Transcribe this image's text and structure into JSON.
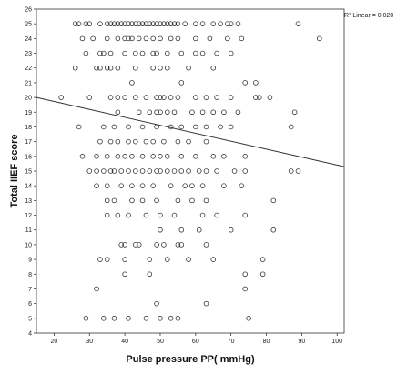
{
  "chart_data": {
    "type": "scatter",
    "xlabel": "Pulse pressure PP( mmHg)",
    "ylabel": "Total IIEF score",
    "xlim": [
      15,
      102
    ],
    "ylim": [
      4,
      26
    ],
    "xticks": [
      20,
      30,
      40,
      50,
      60,
      70,
      80,
      90,
      100
    ],
    "yticks": [
      4,
      5,
      6,
      7,
      8,
      9,
      10,
      11,
      12,
      13,
      14,
      15,
      16,
      17,
      18,
      19,
      20,
      21,
      22,
      23,
      24,
      25,
      26
    ],
    "annotation": "R² Linear = 0.020",
    "regression_line": {
      "x": [
        15,
        102
      ],
      "y": [
        20.0,
        15.3
      ]
    },
    "points": [
      [
        26,
        25
      ],
      [
        27,
        25
      ],
      [
        29,
        25
      ],
      [
        30,
        25
      ],
      [
        33,
        25
      ],
      [
        35,
        25
      ],
      [
        36,
        25
      ],
      [
        37,
        25
      ],
      [
        38,
        25
      ],
      [
        39,
        25
      ],
      [
        40,
        25
      ],
      [
        41,
        25
      ],
      [
        42,
        25
      ],
      [
        43,
        25
      ],
      [
        44,
        25
      ],
      [
        45,
        25
      ],
      [
        46,
        25
      ],
      [
        47,
        25
      ],
      [
        48,
        25
      ],
      [
        49,
        25
      ],
      [
        50,
        25
      ],
      [
        51,
        25
      ],
      [
        52,
        25
      ],
      [
        53,
        25
      ],
      [
        54,
        25
      ],
      [
        55,
        25
      ],
      [
        57,
        25
      ],
      [
        60,
        25
      ],
      [
        62,
        25
      ],
      [
        65,
        25
      ],
      [
        67,
        25
      ],
      [
        69,
        25
      ],
      [
        70,
        25
      ],
      [
        72,
        25
      ],
      [
        89,
        25
      ],
      [
        28,
        24
      ],
      [
        31,
        24
      ],
      [
        35,
        24
      ],
      [
        38,
        24
      ],
      [
        40,
        24
      ],
      [
        41,
        24
      ],
      [
        42,
        24
      ],
      [
        44,
        24
      ],
      [
        46,
        24
      ],
      [
        48,
        24
      ],
      [
        50,
        24
      ],
      [
        53,
        24
      ],
      [
        55,
        24
      ],
      [
        60,
        24
      ],
      [
        64,
        24
      ],
      [
        69,
        24
      ],
      [
        73,
        24
      ],
      [
        95,
        24
      ],
      [
        29,
        23
      ],
      [
        33,
        23
      ],
      [
        34,
        23
      ],
      [
        36,
        23
      ],
      [
        40,
        23
      ],
      [
        43,
        23
      ],
      [
        45,
        23
      ],
      [
        48,
        23
      ],
      [
        49,
        23
      ],
      [
        52,
        23
      ],
      [
        56,
        23
      ],
      [
        60,
        23
      ],
      [
        62,
        23
      ],
      [
        66,
        23
      ],
      [
        70,
        23
      ],
      [
        32,
        22
      ],
      [
        33,
        22
      ],
      [
        35,
        22
      ],
      [
        36,
        22
      ],
      [
        38,
        22
      ],
      [
        43,
        22
      ],
      [
        48,
        22
      ],
      [
        50,
        22
      ],
      [
        52,
        22
      ],
      [
        58,
        22
      ],
      [
        65,
        22
      ],
      [
        26,
        22
      ],
      [
        42,
        21
      ],
      [
        56,
        21
      ],
      [
        74,
        21
      ],
      [
        77,
        21
      ],
      [
        30,
        20
      ],
      [
        36,
        20
      ],
      [
        38,
        20
      ],
      [
        40,
        20
      ],
      [
        43,
        20
      ],
      [
        46,
        20
      ],
      [
        49,
        20
      ],
      [
        50,
        20
      ],
      [
        51,
        20
      ],
      [
        53,
        20
      ],
      [
        55,
        20
      ],
      [
        60,
        20
      ],
      [
        63,
        20
      ],
      [
        66,
        20
      ],
      [
        70,
        20
      ],
      [
        77,
        20
      ],
      [
        78,
        20
      ],
      [
        81,
        20
      ],
      [
        22,
        20
      ],
      [
        38,
        19
      ],
      [
        44,
        19
      ],
      [
        47,
        19
      ],
      [
        49,
        19
      ],
      [
        50,
        19
      ],
      [
        52,
        19
      ],
      [
        54,
        19
      ],
      [
        59,
        19
      ],
      [
        62,
        19
      ],
      [
        65,
        19
      ],
      [
        68,
        19
      ],
      [
        72,
        19
      ],
      [
        88,
        19
      ],
      [
        27,
        18
      ],
      [
        34,
        18
      ],
      [
        37,
        18
      ],
      [
        41,
        18
      ],
      [
        45,
        18
      ],
      [
        49,
        18
      ],
      [
        53,
        18
      ],
      [
        56,
        18
      ],
      [
        60,
        18
      ],
      [
        63,
        18
      ],
      [
        67,
        18
      ],
      [
        70,
        18
      ],
      [
        87,
        18
      ],
      [
        33,
        17
      ],
      [
        36,
        17
      ],
      [
        38,
        17
      ],
      [
        41,
        17
      ],
      [
        43,
        17
      ],
      [
        46,
        17
      ],
      [
        48,
        17
      ],
      [
        51,
        17
      ],
      [
        55,
        17
      ],
      [
        58,
        17
      ],
      [
        63,
        17
      ],
      [
        28,
        16
      ],
      [
        32,
        16
      ],
      [
        35,
        16
      ],
      [
        38,
        16
      ],
      [
        40,
        16
      ],
      [
        42,
        16
      ],
      [
        45,
        16
      ],
      [
        48,
        16
      ],
      [
        50,
        16
      ],
      [
        52,
        16
      ],
      [
        56,
        16
      ],
      [
        60,
        16
      ],
      [
        65,
        16
      ],
      [
        68,
        16
      ],
      [
        74,
        16
      ],
      [
        30,
        15
      ],
      [
        32,
        15
      ],
      [
        34,
        15
      ],
      [
        36,
        15
      ],
      [
        37,
        15
      ],
      [
        39,
        15
      ],
      [
        41,
        15
      ],
      [
        43,
        15
      ],
      [
        45,
        15
      ],
      [
        47,
        15
      ],
      [
        49,
        15
      ],
      [
        50,
        15
      ],
      [
        52,
        15
      ],
      [
        54,
        15
      ],
      [
        56,
        15
      ],
      [
        58,
        15
      ],
      [
        61,
        15
      ],
      [
        63,
        15
      ],
      [
        66,
        15
      ],
      [
        71,
        15
      ],
      [
        74,
        15
      ],
      [
        87,
        15
      ],
      [
        89,
        15
      ],
      [
        32,
        14
      ],
      [
        35,
        14
      ],
      [
        39,
        14
      ],
      [
        42,
        14
      ],
      [
        45,
        14
      ],
      [
        48,
        14
      ],
      [
        53,
        14
      ],
      [
        57,
        14
      ],
      [
        59,
        14
      ],
      [
        62,
        14
      ],
      [
        68,
        14
      ],
      [
        73,
        14
      ],
      [
        35,
        13
      ],
      [
        37,
        13
      ],
      [
        42,
        13
      ],
      [
        45,
        13
      ],
      [
        49,
        13
      ],
      [
        55,
        13
      ],
      [
        59,
        13
      ],
      [
        63,
        13
      ],
      [
        82,
        13
      ],
      [
        35,
        12
      ],
      [
        38,
        12
      ],
      [
        41,
        12
      ],
      [
        46,
        12
      ],
      [
        50,
        12
      ],
      [
        54,
        12
      ],
      [
        62,
        12
      ],
      [
        66,
        12
      ],
      [
        74,
        12
      ],
      [
        50,
        11
      ],
      [
        56,
        11
      ],
      [
        61,
        11
      ],
      [
        70,
        11
      ],
      [
        82,
        11
      ],
      [
        39,
        10
      ],
      [
        40,
        10
      ],
      [
        43,
        10
      ],
      [
        44,
        10
      ],
      [
        49,
        10
      ],
      [
        51,
        10
      ],
      [
        55,
        10
      ],
      [
        56,
        10
      ],
      [
        63,
        10
      ],
      [
        33,
        9
      ],
      [
        35,
        9
      ],
      [
        40,
        9
      ],
      [
        47,
        9
      ],
      [
        52,
        9
      ],
      [
        58,
        9
      ],
      [
        65,
        9
      ],
      [
        79,
        9
      ],
      [
        40,
        8
      ],
      [
        47,
        8
      ],
      [
        74,
        8
      ],
      [
        79,
        8
      ],
      [
        32,
        7
      ],
      [
        74,
        7
      ],
      [
        49,
        6
      ],
      [
        63,
        6
      ],
      [
        29,
        5
      ],
      [
        34,
        5
      ],
      [
        37,
        5
      ],
      [
        41,
        5
      ],
      [
        46,
        5
      ],
      [
        50,
        5
      ],
      [
        53,
        5
      ],
      [
        55,
        5
      ],
      [
        75,
        5
      ]
    ]
  }
}
